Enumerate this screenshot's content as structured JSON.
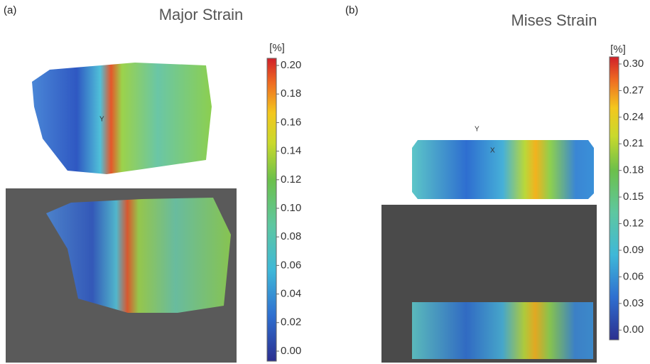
{
  "panels": [
    {
      "label": "(a)",
      "title": "Major Strain",
      "axis_labels": [
        "Y"
      ],
      "colorbar": {
        "unit": "[%]",
        "lim": [
          -0.007,
          0.205
        ],
        "ticks": [
          {
            "value": 0.2,
            "label": "0.20"
          },
          {
            "value": 0.18,
            "label": "0.18"
          },
          {
            "value": 0.16,
            "label": "0.16"
          },
          {
            "value": 0.14,
            "label": "0.14"
          },
          {
            "value": 0.12,
            "label": "0.12"
          },
          {
            "value": 0.1,
            "label": "0.10"
          },
          {
            "value": 0.08,
            "label": "0.08"
          },
          {
            "value": 0.06,
            "label": "0.06"
          },
          {
            "value": 0.04,
            "label": "0.04"
          },
          {
            "value": 0.02,
            "label": "0.02"
          },
          {
            "value": 0,
            "label": "0.00"
          }
        ]
      }
    },
    {
      "label": "(b)",
      "title": "Mises Strain",
      "axis_labels": [
        "Y",
        "X"
      ],
      "colorbar": {
        "unit": "[%]",
        "lim": [
          -0.011,
          0.308
        ],
        "ticks": [
          {
            "value": 0.3,
            "label": "0.30"
          },
          {
            "value": 0.27,
            "label": "0.27"
          },
          {
            "value": 0.24,
            "label": "0.24"
          },
          {
            "value": 0.21,
            "label": "0.21"
          },
          {
            "value": 0.18,
            "label": "0.18"
          },
          {
            "value": 0.15,
            "label": "0.15"
          },
          {
            "value": 0.12,
            "label": "0.12"
          },
          {
            "value": 0.09,
            "label": "0.09"
          },
          {
            "value": 0.06,
            "label": "0.06"
          },
          {
            "value": 0.03,
            "label": "0.03"
          },
          {
            "value": 0,
            "label": "0.00"
          }
        ]
      }
    }
  ]
}
